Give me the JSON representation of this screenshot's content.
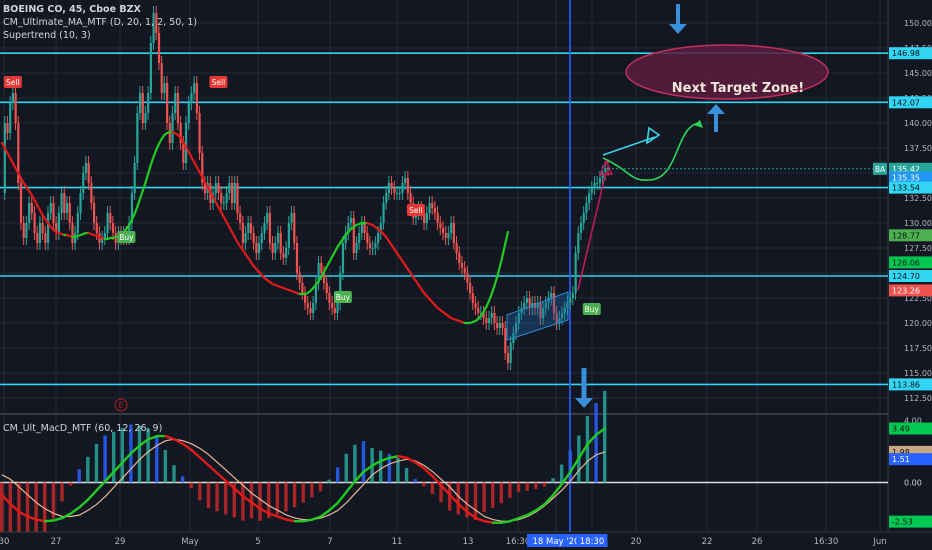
{
  "legend": {
    "symbol": "BOEING CO, 45, Cboe BZX",
    "study_ma": "CM_Ultimate_MA_MTF (D, 20, 1, 2, 50, 1)",
    "study_supertrend": "Supertrend (10, 3)",
    "study_macd": "CM_Ult_MacD_MTF (60, 12, 26, 9)"
  },
  "annotation": {
    "target_zone": "Next Target Zone!",
    "earnings_marker": "E"
  },
  "colors": {
    "background": "#131722",
    "grid": "#252a37",
    "up": "#26a69a",
    "down": "#ef5350",
    "level_line": "#31d6f4",
    "vertical_line": "#2962ff",
    "arrow": "#3a8fd8",
    "ma_up": "#22c922",
    "ma_down": "#e01b1b",
    "zone_fill": "#5c1c3c",
    "zone_edge": "#c0305c"
  },
  "chart_data": [
    {
      "type": "line",
      "title": "BOEING CO, 45, Cboe BZX",
      "ylim": [
        111,
        152.3
      ],
      "price_axis_ticks": [
        "112.50",
        "115.00",
        "117.50",
        "120.00",
        "122.50",
        "125.00",
        "127.50",
        "130.00",
        "132.50",
        "135.00",
        "137.50",
        "140.00",
        "142.50",
        "145.00",
        "147.50",
        "150.00"
      ],
      "x_axis_ticks": [
        "30",
        "27",
        "29",
        "May",
        "5",
        "7",
        "11",
        "13",
        "16:30",
        "18 May '20",
        "18:30",
        "20",
        "22",
        "26",
        "16:30",
        "Jun"
      ],
      "horizontal_levels": [
        146.98,
        142.07,
        133.54,
        124.7,
        113.86
      ],
      "price_labels": [
        {
          "label": "146.98",
          "value": 146.98,
          "color": "#31d6f4"
        },
        {
          "label": "142.07",
          "value": 142.07,
          "color": "#31d6f4"
        },
        {
          "label": "135.42",
          "value": 135.42,
          "color": "#26a69a"
        },
        {
          "label": "135.35",
          "value": 134.55,
          "color": "#2196f3"
        },
        {
          "label": "133.54",
          "value": 133.54,
          "color": "#31d6f4"
        },
        {
          "label": "128.77",
          "value": 128.77,
          "color": "#4caf50"
        },
        {
          "label": "126.06",
          "value": 126.06,
          "color": "#00c853"
        },
        {
          "label": "124.70",
          "value": 124.7,
          "color": "#31d6f4"
        },
        {
          "label": "123.26",
          "value": 123.26,
          "color": "#ef5350"
        },
        {
          "label": "113.86",
          "value": 113.86,
          "color": "#31d6f4"
        }
      ],
      "last_price_tag": "BA",
      "signals": [
        {
          "label": "Sell",
          "bar": 4,
          "price": 144
        },
        {
          "label": "Sell",
          "bar": 80,
          "price": 144
        },
        {
          "label": "Buy",
          "bar": 46,
          "price": 128.5
        },
        {
          "label": "Buy",
          "bar": 126,
          "price": 122.5
        },
        {
          "label": "Sell",
          "bar": 153,
          "price": 131.2
        },
        {
          "label": "Buy",
          "bar": 218,
          "price": 121.3
        }
      ],
      "series": [
        {
          "name": "price",
          "values": [
            133,
            140,
            139,
            142,
            143,
            140,
            134,
            130,
            128.5,
            130,
            132,
            131,
            129,
            128,
            130,
            129,
            128,
            131,
            132,
            130,
            129,
            131,
            133,
            131,
            132,
            130,
            128,
            129,
            131,
            133,
            135,
            136,
            134,
            132,
            130,
            129,
            128,
            128.5,
            129,
            131,
            130,
            129,
            128,
            129,
            128.5,
            129,
            128.5,
            130,
            133,
            136,
            141,
            143,
            140,
            141,
            143,
            148,
            151,
            149,
            146,
            143,
            144,
            140,
            138,
            141,
            143,
            140,
            138,
            136,
            140,
            142,
            143,
            144,
            141,
            137,
            134,
            133,
            134,
            132,
            133,
            134,
            133,
            132,
            132,
            133,
            134,
            132,
            134,
            131,
            130,
            128,
            129,
            130,
            129,
            128,
            127,
            128,
            129,
            130,
            131,
            128,
            127,
            128,
            129,
            127,
            126.5,
            127.5,
            130,
            131,
            128,
            125,
            124,
            123,
            122,
            121.5,
            121,
            122,
            124,
            126,
            125,
            124,
            123,
            122,
            121.5,
            121,
            122,
            125,
            128,
            129,
            130,
            130.5,
            127,
            128,
            129,
            130,
            129,
            128,
            127.5,
            127.5,
            128,
            129,
            130,
            132,
            133,
            134,
            133.5,
            133,
            133,
            133,
            134,
            134.5,
            133,
            132,
            130.5,
            131,
            131.5,
            131,
            130,
            131,
            132,
            131.5,
            131,
            130,
            129.5,
            129,
            128.5,
            129,
            130,
            128,
            127,
            126,
            125.5,
            125,
            124,
            123,
            122,
            121.5,
            121,
            121,
            120.5,
            120,
            120.5,
            121,
            120,
            119.5,
            120,
            119.5,
            117,
            116,
            118,
            119,
            120,
            121,
            121.5,
            122,
            122.5,
            121.5,
            122,
            121.5,
            122,
            120.5,
            121.5,
            122,
            122.5,
            123,
            121,
            120,
            120.5,
            121,
            121.5,
            122,
            122.5,
            123,
            127,
            129,
            130,
            131,
            132,
            133,
            133.5,
            134,
            134,
            134.5,
            135,
            135.5,
            135.42
          ]
        },
        {
          "name": "ma",
          "values": [
            138,
            137.5,
            137,
            136.5,
            136,
            135.5,
            135,
            134.5,
            134,
            133.6,
            133.2,
            132.8,
            132.3,
            131.8,
            131.3,
            130.8,
            130.4,
            130,
            129.6,
            129.3,
            129.1,
            129,
            128.9,
            128.8,
            128.8,
            128.7,
            128.6,
            128.6,
            128.7,
            128.8,
            128.9,
            129,
            129,
            128.9,
            128.8,
            128.7,
            128.6,
            128.5,
            128.4,
            128.4,
            128.5,
            128.5,
            128.6,
            128.7,
            128.9,
            129.1,
            129.4,
            129.8,
            130.3,
            130.9,
            131.6,
            132.4,
            133.2,
            134,
            134.9,
            135.8,
            136.6,
            137.3,
            137.9,
            138.4,
            138.8,
            139,
            139.1,
            139.1,
            139,
            138.8,
            138.5,
            138.1,
            137.6,
            137.1,
            136.6,
            136.1,
            135.6,
            135.1,
            134.6,
            134.1,
            133.6,
            133.1,
            132.6,
            132.1,
            131.6,
            131.1,
            130.6,
            130.1,
            129.6,
            129.1,
            128.6,
            128.1,
            127.7,
            127.3,
            126.9,
            126.5,
            126.1,
            125.7,
            125.4,
            125.1,
            124.8,
            124.5,
            124.3,
            124.1,
            123.9,
            123.8,
            123.7,
            123.6,
            123.5,
            123.4,
            123.3,
            123.2,
            123.1,
            123,
            122.9,
            122.9,
            122.9,
            123,
            123.2,
            123.5,
            123.8,
            124.2,
            124.6,
            125.1,
            125.6,
            126.1,
            126.6,
            127.1,
            127.6,
            128,
            128.4,
            128.8,
            129.1,
            129.4,
            129.6,
            129.8,
            129.9,
            130,
            130,
            130,
            129.9,
            129.8,
            129.6,
            129.4,
            129.2,
            128.9,
            128.6,
            128.2,
            127.8,
            127.4,
            127,
            126.6,
            126.2,
            125.8,
            125.4,
            125,
            124.6,
            124.2,
            123.8,
            123.4,
            123,
            122.7,
            122.4,
            122.1,
            121.8,
            121.5,
            121.3,
            121.1,
            120.9,
            120.7,
            120.5,
            120.4,
            120.3,
            120.2,
            120.1,
            120,
            120,
            120,
            120.1,
            120.2,
            120.4,
            120.7,
            121.1,
            121.6,
            122.2,
            122.9,
            123.7,
            124.6,
            125.6,
            126.7,
            127.9,
            129.1
          ]
        }
      ]
    },
    {
      "type": "bar",
      "title": "CM_Ult_MacD_MTF (60, 12, 26, 9)",
      "ylim": [
        -3.2,
        4.3
      ],
      "price_axis_ticks": [
        "4.00",
        "0.00"
      ],
      "price_labels": [
        {
          "label": "3.49",
          "value": 3.49,
          "color": "#00c853"
        },
        {
          "label": "1.98",
          "value": 1.98,
          "color": "#c8a882"
        },
        {
          "label": "1.51",
          "value": 1.51,
          "color": "#2962ff"
        },
        {
          "label": "0.00",
          "value": 0,
          "color": "#131722"
        },
        {
          "label": "-2.53",
          "value": -2.53,
          "color": "#00c853"
        }
      ],
      "series": [
        {
          "name": "macd",
          "values": [
            -0.8,
            -1.4,
            -1.9,
            -2.2,
            -2.4,
            -2.5,
            -2.45,
            -2.3,
            -2,
            -1.6,
            -1.1,
            -0.5,
            0.1,
            0.7,
            1.3,
            1.9,
            2.4,
            2.8,
            3,
            3,
            2.8,
            2.5,
            2.1,
            1.6,
            1.1,
            0.6,
            0.1,
            -0.4,
            -0.9,
            -1.3,
            -1.7,
            -2,
            -2.2,
            -2.4,
            -2.5,
            -2.5,
            -2.4,
            -2.2,
            -1.8,
            -1.3,
            -0.6,
            0.1,
            0.7,
            1.1,
            1.4,
            1.6,
            1.7,
            1.6,
            1.3,
            0.9,
            0.4,
            -0.2,
            -0.8,
            -1.4,
            -1.9,
            -2.3,
            -2.5,
            -2.6,
            -2.6,
            -2.5,
            -2.3,
            -2.1,
            -1.8,
            -1.4,
            -0.8,
            -0.1,
            0.7,
            1.6,
            2.5,
            3.1,
            3.49
          ]
        },
        {
          "name": "signal",
          "values": [
            0.5,
            0.2,
            -0.3,
            -0.8,
            -1.3,
            -1.7,
            -2,
            -2.2,
            -2.2,
            -2.1,
            -1.8,
            -1.4,
            -0.9,
            -0.3,
            0.3,
            0.9,
            1.5,
            2,
            2.4,
            2.7,
            2.8,
            2.7,
            2.5,
            2.2,
            1.8,
            1.3,
            0.8,
            0.3,
            -0.2,
            -0.7,
            -1.1,
            -1.5,
            -1.8,
            -2.1,
            -2.3,
            -2.4,
            -2.4,
            -2.3,
            -2.1,
            -1.8,
            -1.3,
            -0.7,
            -0.1,
            0.5,
            0.9,
            1.2,
            1.4,
            1.5,
            1.4,
            1.1,
            0.7,
            0.2,
            -0.3,
            -0.9,
            -1.4,
            -1.8,
            -2.2,
            -2.4,
            -2.5,
            -2.5,
            -2.4,
            -2.2,
            -1.9,
            -1.5,
            -1,
            -0.5,
            0.1,
            0.8,
            1.4,
            1.8,
            1.98
          ]
        }
      ]
    }
  ]
}
